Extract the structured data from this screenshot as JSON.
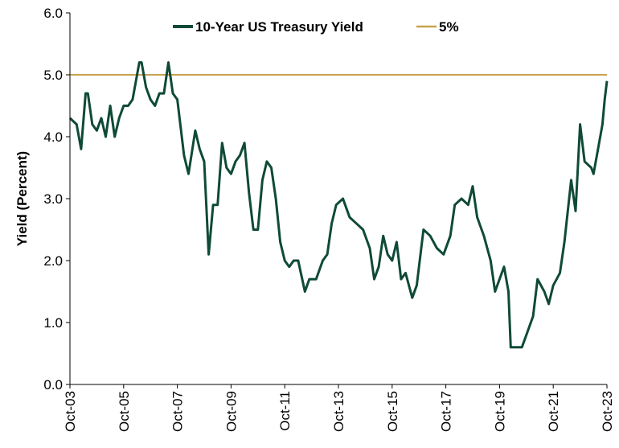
{
  "chart_data": {
    "type": "line",
    "title": "",
    "xlabel": "",
    "ylabel": "Yield (Percent)",
    "ylim": [
      0,
      6
    ],
    "yticks": [
      "0.0",
      "1.0",
      "2.0",
      "3.0",
      "4.0",
      "5.0",
      "6.0"
    ],
    "xticks": [
      "Oct-03",
      "Oct-05",
      "Oct-07",
      "Oct-09",
      "Oct-11",
      "Oct-13",
      "Oct-15",
      "Oct-17",
      "Oct-19",
      "Oct-21",
      "Oct-23"
    ],
    "grid": false,
    "legend_position": "top",
    "colors": {
      "yield": "#0f4a38",
      "reference": "#c9a24e"
    },
    "series": [
      {
        "name": "10-Year US Treasury Yield",
        "x": [
          "Oct-03",
          "Jan-04",
          "Mar-04",
          "May-04",
          "Jun-04",
          "Aug-04",
          "Oct-04",
          "Dec-04",
          "Feb-05",
          "Apr-05",
          "Jun-05",
          "Aug-05",
          "Oct-05",
          "Dec-05",
          "Feb-06",
          "Apr-06",
          "May-06",
          "Jun-06",
          "Aug-06",
          "Oct-06",
          "Dec-06",
          "Feb-07",
          "Apr-07",
          "Jun-07",
          "Aug-07",
          "Oct-07",
          "Jan-08",
          "Mar-08",
          "Jun-08",
          "Aug-08",
          "Oct-08",
          "Dec-08",
          "Feb-09",
          "Apr-09",
          "Jun-09",
          "Aug-09",
          "Oct-09",
          "Dec-09",
          "Feb-10",
          "Apr-10",
          "Jun-10",
          "Aug-10",
          "Oct-10",
          "Dec-10",
          "Feb-11",
          "Apr-11",
          "Jun-11",
          "Aug-11",
          "Oct-11",
          "Dec-11",
          "Feb-12",
          "Apr-12",
          "Jul-12",
          "Sep-12",
          "Dec-12",
          "Mar-13",
          "May-13",
          "Jul-13",
          "Sep-13",
          "Dec-13",
          "Mar-14",
          "Jun-14",
          "Sep-14",
          "Dec-14",
          "Feb-15",
          "Apr-15",
          "Jun-15",
          "Aug-15",
          "Oct-15",
          "Dec-15",
          "Feb-16",
          "Apr-16",
          "Jul-16",
          "Sep-16",
          "Nov-16",
          "Dec-16",
          "Mar-17",
          "Jun-17",
          "Sep-17",
          "Dec-17",
          "Feb-18",
          "May-18",
          "Aug-18",
          "Oct-18",
          "Dec-18",
          "Mar-19",
          "Jun-19",
          "Aug-19",
          "Oct-19",
          "Dec-19",
          "Feb-20",
          "Mar-20",
          "Aug-20",
          "Oct-20",
          "Jan-21",
          "Mar-21",
          "Jun-21",
          "Aug-21",
          "Oct-21",
          "Jan-22",
          "Mar-22",
          "Jun-22",
          "Aug-22",
          "Oct-22",
          "Dec-22",
          "Mar-23",
          "Apr-23",
          "Jun-23",
          "Aug-23",
          "Sep-23",
          "Oct-23"
        ],
        "values": [
          4.3,
          4.2,
          3.8,
          4.7,
          4.7,
          4.2,
          4.1,
          4.3,
          4.0,
          4.5,
          4.0,
          4.3,
          4.5,
          4.5,
          4.6,
          5.0,
          5.2,
          5.2,
          4.8,
          4.6,
          4.5,
          4.7,
          4.7,
          5.2,
          4.7,
          4.6,
          3.7,
          3.4,
          4.1,
          3.8,
          3.6,
          2.1,
          2.9,
          2.9,
          3.9,
          3.5,
          3.4,
          3.6,
          3.7,
          3.9,
          3.1,
          2.5,
          2.5,
          3.3,
          3.6,
          3.5,
          3.0,
          2.3,
          2.0,
          1.9,
          2.0,
          2.0,
          1.5,
          1.7,
          1.7,
          2.0,
          2.1,
          2.6,
          2.9,
          3.0,
          2.7,
          2.6,
          2.5,
          2.2,
          1.7,
          1.9,
          2.4,
          2.1,
          2.0,
          2.3,
          1.7,
          1.8,
          1.4,
          1.6,
          2.2,
          2.5,
          2.4,
          2.2,
          2.1,
          2.4,
          2.9,
          3.0,
          2.9,
          3.2,
          2.7,
          2.4,
          2.0,
          1.5,
          1.7,
          1.9,
          1.5,
          0.6,
          0.6,
          0.8,
          1.1,
          1.7,
          1.5,
          1.3,
          1.6,
          1.8,
          2.3,
          3.3,
          2.8,
          4.2,
          3.6,
          3.5,
          3.4,
          3.8,
          4.2,
          4.6,
          4.9
        ]
      },
      {
        "name": "5%",
        "x": [
          "Oct-03",
          "Oct-23"
        ],
        "values": [
          5.0,
          5.0
        ]
      }
    ]
  }
}
